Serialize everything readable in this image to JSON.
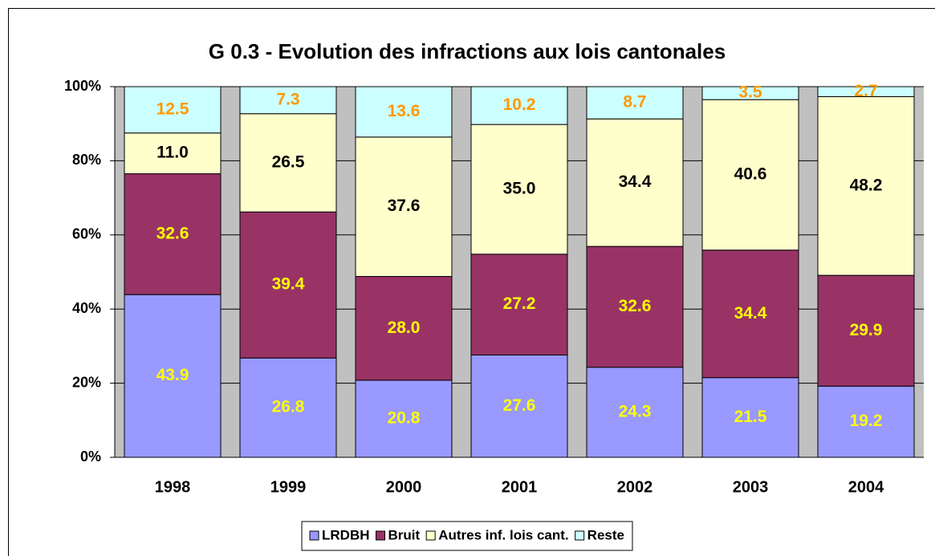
{
  "chart_data": {
    "type": "stacked_bar",
    "title": "G 0.3 - Evolution des infractions aux lois cantonales",
    "categories": [
      "1998",
      "1999",
      "2000",
      "2001",
      "2002",
      "2003",
      "2004"
    ],
    "series": [
      {
        "name": "LRDBH",
        "color": "#9999ff",
        "label_color": "#ffff00",
        "values": [
          43.9,
          26.8,
          20.8,
          27.6,
          24.3,
          21.5,
          19.2
        ],
        "value_labels": [
          "43.9",
          "26.8",
          "20.8",
          "27.6",
          "24.3",
          "21.5",
          "19.2"
        ]
      },
      {
        "name": "Bruit",
        "color": "#993366",
        "label_color": "#ffff00",
        "values": [
          32.6,
          39.4,
          28.0,
          27.2,
          32.6,
          34.4,
          29.9
        ],
        "value_labels": [
          "32.6",
          "39.4",
          "28.0",
          "27.2",
          "32.6",
          "34.4",
          "29.9"
        ]
      },
      {
        "name": "Autres inf. lois cant.",
        "color": "#ffffcc",
        "label_color": "#000000",
        "values": [
          11.0,
          26.5,
          37.6,
          35.0,
          34.4,
          40.6,
          48.2
        ],
        "value_labels": [
          "11.0",
          "26.5",
          "37.6",
          "35.0",
          "34.4",
          "40.6",
          "48.2"
        ]
      },
      {
        "name": "Reste",
        "color": "#ccffff",
        "label_color": "#ff9900",
        "values": [
          12.5,
          7.3,
          13.6,
          10.2,
          8.7,
          3.5,
          2.7
        ],
        "value_labels": [
          "12.5",
          "7.3",
          "13.6",
          "10.2",
          "8.7",
          "3.5",
          "2.7"
        ]
      }
    ],
    "ylim": [
      0,
      100
    ],
    "yticks": [
      {
        "value": 0,
        "label": "0%"
      },
      {
        "value": 20,
        "label": "20%"
      },
      {
        "value": 40,
        "label": "40%"
      },
      {
        "value": 60,
        "label": "60%"
      },
      {
        "value": 80,
        "label": "80%"
      },
      {
        "value": 100,
        "label": "100%"
      }
    ],
    "grid": true,
    "plot_background": "#c0c0c0",
    "legend": "bottom"
  }
}
